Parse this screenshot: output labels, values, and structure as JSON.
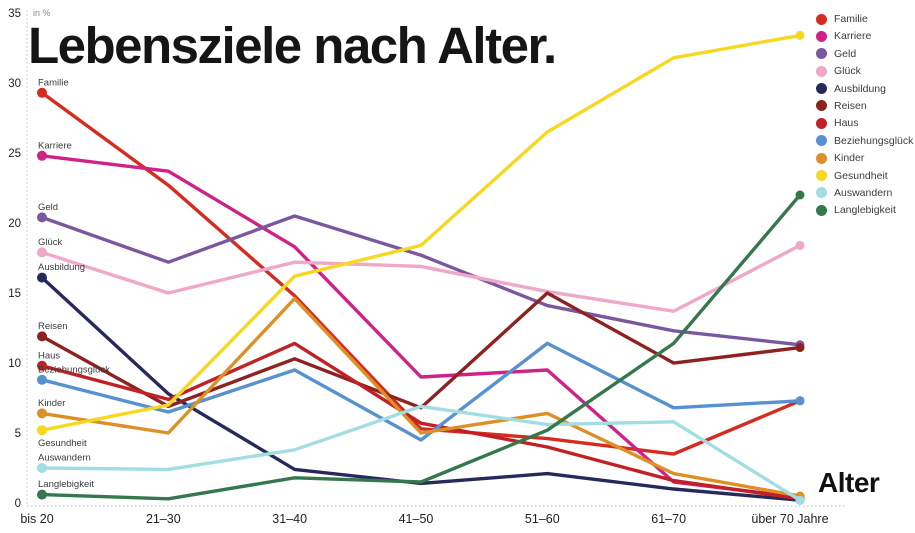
{
  "title": "Lebensziele nach Alter.",
  "y_axis": {
    "unit_label": "in %",
    "ticks": [
      0,
      5,
      10,
      15,
      20,
      25,
      30,
      35
    ]
  },
  "x_axis": {
    "title": "Alter"
  },
  "chart_data": {
    "type": "line",
    "title": "Lebensziele nach Alter.",
    "xlabel": "Alter",
    "ylabel": "in %",
    "ylim": [
      0,
      35
    ],
    "grid": false,
    "legend_position": "top-right",
    "categories": [
      "bis 20",
      "21–30",
      "31–40",
      "41–50",
      "51–60",
      "61–70",
      "über 70 Jahre"
    ],
    "series": [
      {
        "name": "Familie",
        "color": "#d62b1f",
        "values": [
          29.3,
          22.7,
          14.8,
          5.3,
          4.6,
          3.5,
          7.3
        ]
      },
      {
        "name": "Karriere",
        "color": "#cf2286",
        "values": [
          24.8,
          23.7,
          18.3,
          9.0,
          9.5,
          1.5,
          0.4
        ]
      },
      {
        "name": "Geld",
        "color": "#7a589f",
        "values": [
          20.4,
          17.2,
          20.5,
          17.7,
          14.1,
          12.3,
          11.3
        ]
      },
      {
        "name": "Glück",
        "color": "#efa8c8",
        "values": [
          17.9,
          15.0,
          17.2,
          16.9,
          15.1,
          13.7,
          18.4
        ]
      },
      {
        "name": "Ausbildung",
        "color": "#262a5b",
        "values": [
          16.1,
          7.8,
          2.4,
          1.4,
          2.1,
          1.0,
          0.2
        ]
      },
      {
        "name": "Reisen",
        "color": "#8c2321",
        "values": [
          11.9,
          6.9,
          10.3,
          6.8,
          15.0,
          10.0,
          11.1
        ]
      },
      {
        "name": "Haus",
        "color": "#c12125",
        "values": [
          9.8,
          7.4,
          11.4,
          5.7,
          4.0,
          1.6,
          0.3
        ]
      },
      {
        "name": "Beziehungsglück",
        "color": "#5791d0",
        "values": [
          8.8,
          6.5,
          9.5,
          4.5,
          11.4,
          6.8,
          7.3
        ]
      },
      {
        "name": "Kinder",
        "color": "#dc9026",
        "values": [
          6.4,
          5.0,
          14.6,
          5.0,
          6.4,
          2.1,
          0.5
        ]
      },
      {
        "name": "Gesundheit",
        "color": "#f7d820",
        "values": [
          5.2,
          7.0,
          16.2,
          18.4,
          26.5,
          31.8,
          33.4
        ]
      },
      {
        "name": "Auswandern",
        "color": "#a2dde4",
        "values": [
          2.5,
          2.4,
          3.8,
          6.9,
          5.6,
          5.8,
          0.2
        ]
      },
      {
        "name": "Langlebigkeit",
        "color": "#35784d",
        "values": [
          0.6,
          0.3,
          1.8,
          1.5,
          5.2,
          11.4,
          22.0
        ]
      }
    ]
  }
}
